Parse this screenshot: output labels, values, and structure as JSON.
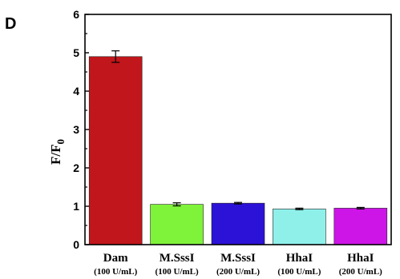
{
  "panel_label": "D",
  "chart_data": {
    "type": "bar",
    "ylabel": "F/F",
    "ylabel_subscript": "0",
    "ylim": [
      0,
      6
    ],
    "yticks": [
      "0",
      "1",
      "2",
      "3",
      "4",
      "5",
      "6"
    ],
    "grid": false,
    "categories": [
      {
        "name": "Dam",
        "sub": "(100 U/mL)"
      },
      {
        "name": "M.SssI",
        "sub": "(100 U/mL)"
      },
      {
        "name": "M.SssI",
        "sub": "(200 U/mL)"
      },
      {
        "name": "HhaI",
        "sub": "(100 U/mL)"
      },
      {
        "name": "HhaI",
        "sub": "(200 U/mL)"
      }
    ],
    "values": [
      4.9,
      1.05,
      1.08,
      0.93,
      0.95
    ],
    "errors": [
      0.15,
      0.04,
      0.02,
      0.02,
      0.02
    ],
    "colors": [
      "#c1161b",
      "#7ff23a",
      "#2b12d6",
      "#8ff0ea",
      "#cc15e6"
    ]
  }
}
